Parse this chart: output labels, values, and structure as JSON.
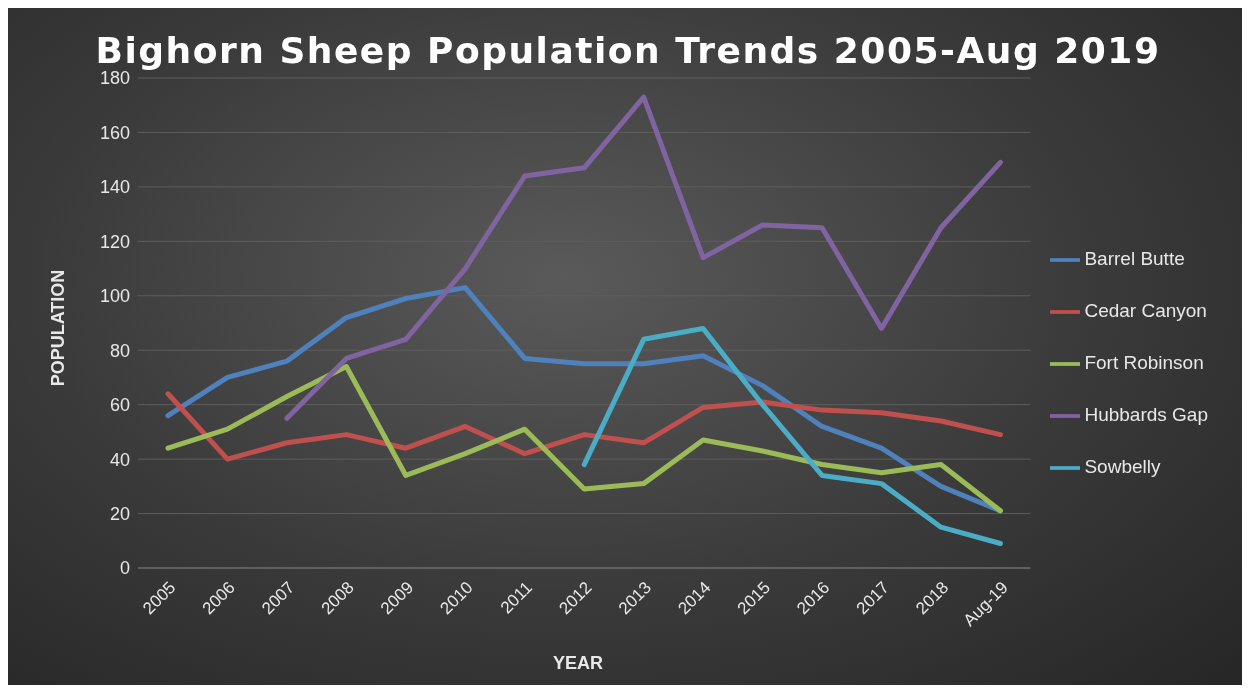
{
  "chart_data": {
    "type": "line",
    "title": "Bighorn Sheep Population Trends 2005-Aug 2019",
    "xlabel": "YEAR",
    "ylabel": "POPULATION",
    "categories": [
      "2005",
      "2006",
      "2007",
      "2008",
      "2009",
      "2010",
      "2011",
      "2012",
      "2013",
      "2014",
      "2015",
      "2016",
      "2017",
      "2018",
      "Aug-19"
    ],
    "series": [
      {
        "name": "Barrel Butte",
        "color": "#4f81bd",
        "values": [
          56,
          70,
          76,
          92,
          99,
          103,
          77,
          75,
          75,
          78,
          67,
          52,
          44,
          30,
          21
        ]
      },
      {
        "name": "Cedar Canyon",
        "color": "#c0504d",
        "values": [
          64,
          40,
          46,
          49,
          44,
          52,
          42,
          49,
          46,
          59,
          61,
          58,
          57,
          54,
          49
        ]
      },
      {
        "name": "Fort Robinson",
        "color": "#9bbb59",
        "values": [
          44,
          51,
          63,
          74,
          34,
          42,
          51,
          29,
          31,
          47,
          43,
          38,
          35,
          38,
          21
        ]
      },
      {
        "name": "Hubbards Gap",
        "color": "#8064a2",
        "values": [
          null,
          null,
          55,
          77,
          84,
          110,
          144,
          147,
          173,
          114,
          126,
          125,
          88,
          125,
          149
        ]
      },
      {
        "name": "Sowbelly",
        "color": "#4bacc6",
        "values": [
          null,
          null,
          null,
          null,
          null,
          null,
          null,
          38,
          84,
          88,
          60,
          34,
          31,
          15,
          9
        ]
      }
    ],
    "ylim": [
      0,
      180
    ],
    "yticks": [
      0,
      20,
      40,
      60,
      80,
      100,
      120,
      140,
      160,
      180
    ],
    "grid": "y",
    "legend": "right",
    "marker": "none",
    "line_style": "solid"
  }
}
